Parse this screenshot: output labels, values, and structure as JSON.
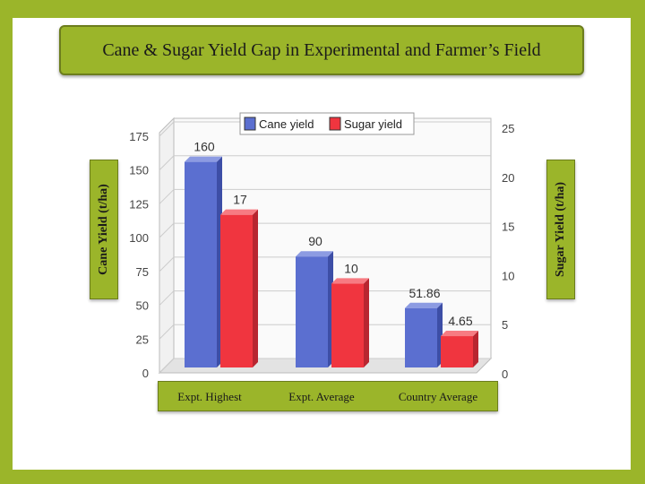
{
  "title": "Cane & Sugar Yield Gap in Experimental and Farmer’s Field",
  "colors": {
    "frame": "#9bb52a",
    "cane": "#5b6fd0",
    "sugar": "#f0353f"
  },
  "chart_data": {
    "type": "bar",
    "categories": [
      "Expt. Highest",
      "Expt. Average",
      "Country Average"
    ],
    "series": [
      {
        "name": "Cane yield",
        "axis": "left",
        "values": [
          160,
          90,
          51.86
        ],
        "labels": [
          "160",
          "90",
          "51.86"
        ]
      },
      {
        "name": "Sugar yield",
        "axis": "right",
        "values": [
          17,
          10,
          4.65
        ],
        "labels": [
          "17",
          "10",
          "4.65"
        ]
      }
    ],
    "ylabel_left": "Cane Yield (t/ha)",
    "ylabel_right": "Sugar Yield (t/ha)",
    "ylim_left": [
      0,
      175
    ],
    "ylim_right": [
      0,
      25
    ],
    "left_ticks": [
      "0",
      "25",
      "50",
      "75",
      "100",
      "125",
      "150",
      "175"
    ],
    "right_ticks": [
      "0",
      "5",
      "10",
      "15",
      "20",
      "25"
    ],
    "legend_position": "top",
    "grid": true,
    "style": "3d"
  }
}
